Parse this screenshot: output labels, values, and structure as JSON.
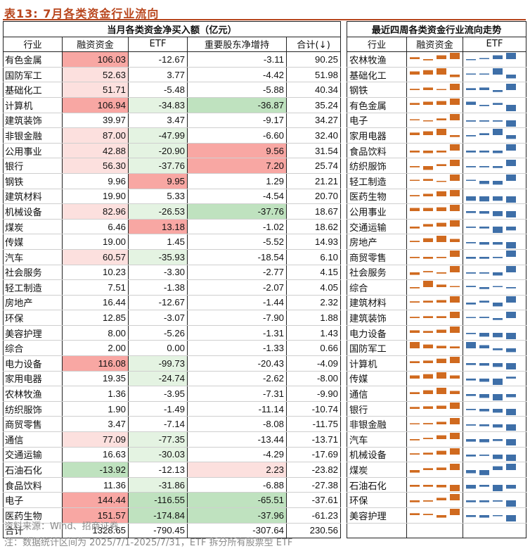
{
  "title": "表13: 7月各类资金行业流向",
  "left_header": "当月各类资金净买入额（亿元）",
  "right_header": "最近四周各类资金行业流向走势",
  "columns": [
    "行业",
    "融资资金",
    "ETF",
    "重要股东净增持",
    "合计(↓)"
  ],
  "right_columns": [
    "行业",
    "融资资金",
    "ETF"
  ],
  "colors": {
    "title": "#B8451C",
    "orange_bar": "#D06A1F",
    "blue_bar": "#3E6FA8",
    "red_cell": "#F8A7A3",
    "red_cell_light": "#FCE0DE",
    "green_cell": "#BFE2BF",
    "green_cell_light": "#E4F3E2"
  },
  "rows": [
    {
      "industry": "有色金属",
      "financing": "106.03",
      "etf": "-12.67",
      "holders": "-3.11",
      "total": "90.25"
    },
    {
      "industry": "国防军工",
      "financing": "52.63",
      "etf": "3.77",
      "holders": "-4.42",
      "total": "51.98"
    },
    {
      "industry": "基础化工",
      "financing": "51.71",
      "etf": "-5.48",
      "holders": "-5.88",
      "total": "40.34"
    },
    {
      "industry": "计算机",
      "financing": "106.94",
      "etf": "-34.83",
      "holders": "-36.87",
      "total": "35.24"
    },
    {
      "industry": "建筑装饰",
      "financing": "39.97",
      "etf": "3.47",
      "holders": "-9.17",
      "total": "34.27"
    },
    {
      "industry": "非银金融",
      "financing": "87.00",
      "etf": "-47.99",
      "holders": "-6.60",
      "total": "32.40"
    },
    {
      "industry": "公用事业",
      "financing": "42.88",
      "etf": "-20.90",
      "holders": "9.56",
      "total": "31.54"
    },
    {
      "industry": "银行",
      "financing": "56.30",
      "etf": "-37.76",
      "holders": "7.20",
      "total": "25.74"
    },
    {
      "industry": "钢铁",
      "financing": "9.96",
      "etf": "9.95",
      "holders": "1.29",
      "total": "21.21"
    },
    {
      "industry": "建筑材料",
      "financing": "19.90",
      "etf": "5.33",
      "holders": "-4.54",
      "total": "20.70"
    },
    {
      "industry": "机械设备",
      "financing": "82.96",
      "etf": "-26.53",
      "holders": "-37.76",
      "total": "18.67"
    },
    {
      "industry": "煤炭",
      "financing": "6.46",
      "etf": "13.18",
      "holders": "-1.02",
      "total": "18.62"
    },
    {
      "industry": "传媒",
      "financing": "19.00",
      "etf": "1.45",
      "holders": "-5.52",
      "total": "14.93"
    },
    {
      "industry": "汽车",
      "financing": "60.57",
      "etf": "-35.93",
      "holders": "-18.54",
      "total": "6.10"
    },
    {
      "industry": "社会服务",
      "financing": "10.23",
      "etf": "-3.30",
      "holders": "-2.77",
      "total": "4.15"
    },
    {
      "industry": "轻工制造",
      "financing": "7.51",
      "etf": "-1.38",
      "holders": "-2.07",
      "total": "4.05"
    },
    {
      "industry": "房地产",
      "financing": "16.44",
      "etf": "-12.67",
      "holders": "-1.44",
      "total": "2.32"
    },
    {
      "industry": "环保",
      "financing": "12.85",
      "etf": "-3.07",
      "holders": "-7.90",
      "total": "1.88"
    },
    {
      "industry": "美容护理",
      "financing": "8.00",
      "etf": "-5.26",
      "holders": "-1.31",
      "total": "1.43"
    },
    {
      "industry": "综合",
      "financing": "2.00",
      "etf": "0.00",
      "holders": "-1.33",
      "total": "0.66"
    },
    {
      "industry": "电力设备",
      "financing": "116.08",
      "etf": "-99.73",
      "holders": "-20.43",
      "total": "-4.09"
    },
    {
      "industry": "家用电器",
      "financing": "19.35",
      "etf": "-24.74",
      "holders": "-2.62",
      "total": "-8.00"
    },
    {
      "industry": "农林牧渔",
      "financing": "1.36",
      "etf": "-3.95",
      "holders": "-7.31",
      "total": "-9.90"
    },
    {
      "industry": "纺织服饰",
      "financing": "1.90",
      "etf": "-1.49",
      "holders": "-11.14",
      "total": "-10.74"
    },
    {
      "industry": "商贸零售",
      "financing": "3.47",
      "etf": "-7.14",
      "holders": "-8.08",
      "total": "-11.75"
    },
    {
      "industry": "通信",
      "financing": "77.09",
      "etf": "-77.35",
      "holders": "-13.44",
      "total": "-13.71"
    },
    {
      "industry": "交通运输",
      "financing": "16.63",
      "etf": "-30.03",
      "holders": "-4.29",
      "total": "-17.69"
    },
    {
      "industry": "石油石化",
      "financing": "-13.92",
      "etf": "-12.13",
      "holders": "2.23",
      "total": "-23.82"
    },
    {
      "industry": "食品饮料",
      "financing": "11.36",
      "etf": "-31.86",
      "holders": "-6.88",
      "total": "-27.38"
    },
    {
      "industry": "电子",
      "financing": "144.44",
      "etf": "-116.55",
      "holders": "-65.51",
      "total": "-37.61"
    },
    {
      "industry": "医药生物",
      "financing": "151.57",
      "etf": "-174.84",
      "holders": "-37.96",
      "total": "-61.23"
    }
  ],
  "totals": {
    "label": "合计",
    "financing": "1328.65",
    "etf": "-790.45",
    "holders": "-307.64",
    "total": "230.56"
  },
  "trend_rows": [
    {
      "industry": "农林牧渔",
      "fin": [
        0.3,
        -0.2,
        0.6,
        1
      ],
      "etf": [
        -0.1,
        0.1,
        0.6,
        1
      ]
    },
    {
      "industry": "基础化工",
      "fin": [
        0.5,
        0.7,
        1,
        -0.4
      ],
      "etf": [
        0.1,
        0.1,
        1,
        -0.6
      ]
    },
    {
      "industry": "钢铁",
      "fin": [
        0.2,
        0.4,
        0.1,
        1
      ],
      "etf": [
        0.3,
        0.4,
        -0.3,
        1
      ]
    },
    {
      "industry": "有色金属",
      "fin": [
        0.3,
        0.5,
        0.6,
        1
      ],
      "etf": [
        0.5,
        -0.2,
        0.3,
        -1
      ]
    },
    {
      "industry": "电子",
      "fin": [
        0.1,
        -0.1,
        0.3,
        1
      ],
      "etf": [
        -0.2,
        -0.2,
        -0.2,
        -1
      ]
    },
    {
      "industry": "家用电器",
      "fin": [
        0.4,
        0.6,
        1,
        -0.3
      ],
      "etf": [
        -0.2,
        0.3,
        1,
        -0.6
      ]
    },
    {
      "industry": "食品饮料",
      "fin": [
        -0.3,
        -0.4,
        -0.3,
        1
      ],
      "etf": [
        -0.3,
        -0.3,
        -0.4,
        1
      ]
    },
    {
      "industry": "纺织服饰",
      "fin": [
        -0.2,
        -0.6,
        0.3,
        1
      ],
      "etf": [
        -0.2,
        -0.2,
        -0.3,
        1
      ]
    },
    {
      "industry": "轻工制造",
      "fin": [
        0.1,
        0.3,
        -0.1,
        1
      ],
      "etf": [
        0.1,
        -0.5,
        -0.6,
        1
      ]
    },
    {
      "industry": "医药生物",
      "fin": [
        0.2,
        0.4,
        0.8,
        1
      ],
      "etf": [
        -0.7,
        -0.8,
        -0.7,
        -1
      ]
    },
    {
      "industry": "公用事业",
      "fin": [
        0.5,
        0.5,
        0.6,
        1
      ],
      "etf": [
        -0.3,
        -0.4,
        -0.8,
        -1
      ]
    },
    {
      "industry": "交通运输",
      "fin": [
        -0.3,
        0.4,
        0.6,
        1
      ],
      "etf": [
        -0.2,
        -0.3,
        -1,
        -0.6
      ]
    },
    {
      "industry": "房地产",
      "fin": [
        0.2,
        0.6,
        1,
        0.5
      ],
      "etf": [
        -0.2,
        -0.4,
        -0.4,
        -1
      ]
    },
    {
      "industry": "商贸零售",
      "fin": [
        -0.2,
        -0.3,
        -0.2,
        1
      ],
      "etf": [
        -0.3,
        -0.3,
        -0.2,
        1
      ]
    },
    {
      "industry": "社会服务",
      "fin": [
        -0.4,
        0.2,
        -0.2,
        1
      ],
      "etf": [
        -0.2,
        -0.2,
        -0.5,
        1
      ]
    },
    {
      "industry": "综合",
      "fin": [
        -0.2,
        1,
        0.4,
        0.1
      ],
      "etf": [
        0.2,
        -0.3,
        0.1,
        -0.2
      ]
    },
    {
      "industry": "建筑材料",
      "fin": [
        0.2,
        0.3,
        0.4,
        1
      ],
      "etf": [
        -0.3,
        0.3,
        -0.6,
        1
      ]
    },
    {
      "industry": "建筑装饰",
      "fin": [
        0.2,
        0.3,
        0.3,
        1
      ],
      "etf": [
        0.1,
        0.2,
        -0.3,
        1
      ]
    },
    {
      "industry": "电力设备",
      "fin": [
        0.4,
        0.3,
        0.5,
        1
      ],
      "etf": [
        -0.2,
        -0.6,
        -0.7,
        -1
      ]
    },
    {
      "industry": "国防军工",
      "fin": [
        1,
        0.6,
        0.4,
        0.3
      ],
      "etf": [
        1,
        0.5,
        -0.3,
        -0.6
      ]
    },
    {
      "industry": "计算机",
      "fin": [
        0.3,
        0.4,
        0.7,
        1
      ],
      "etf": [
        -0.3,
        -0.4,
        -0.6,
        -1
      ]
    },
    {
      "industry": "传媒",
      "fin": [
        0.5,
        0.7,
        1,
        0.5
      ],
      "etf": [
        -0.3,
        -0.5,
        -1,
        0.3
      ]
    },
    {
      "industry": "通信",
      "fin": [
        0.3,
        0.6,
        1,
        0.5
      ],
      "etf": [
        -0.3,
        -0.6,
        -1,
        -0.5
      ]
    },
    {
      "industry": "银行",
      "fin": [
        0.3,
        0.4,
        0.5,
        1
      ],
      "etf": [
        -0.2,
        -0.4,
        -0.6,
        -1
      ]
    },
    {
      "industry": "非银金融",
      "fin": [
        0.1,
        0.2,
        0.4,
        1
      ],
      "etf": [
        -0.2,
        -0.3,
        -0.5,
        -1
      ]
    },
    {
      "industry": "汽车",
      "fin": [
        -0.2,
        0.2,
        0.6,
        1
      ],
      "etf": [
        -0.4,
        -0.5,
        -0.3,
        -1
      ]
    },
    {
      "industry": "机械设备",
      "fin": [
        0.2,
        0.3,
        0.6,
        1
      ],
      "etf": [
        -0.3,
        -0.2,
        -0.7,
        -1
      ]
    },
    {
      "industry": "煤炭",
      "fin": [
        -0.4,
        0.3,
        0.4,
        1
      ],
      "etf": [
        -0.5,
        -0.8,
        0.6,
        1
      ]
    },
    {
      "industry": "石油石化",
      "fin": [
        -0.3,
        -0.3,
        -0.4,
        -1
      ],
      "etf": [
        -0.6,
        -0.3,
        -1,
        -0.6
      ]
    },
    {
      "industry": "环保",
      "fin": [
        -0.3,
        -0.2,
        0.4,
        1
      ],
      "etf": [
        -0.3,
        -0.3,
        -0.2,
        -1
      ]
    },
    {
      "industry": "美容护理",
      "fin": [
        0.3,
        0.2,
        -0.4,
        1
      ],
      "etf": [
        -0.3,
        -0.4,
        -0.1,
        -1
      ]
    }
  ],
  "source": "资料来源：Wind、招商证券",
  "note": "注：数据统计区间为 2025/7/1-2025/7/31，ETF 拆分所有股票型 ETF"
}
